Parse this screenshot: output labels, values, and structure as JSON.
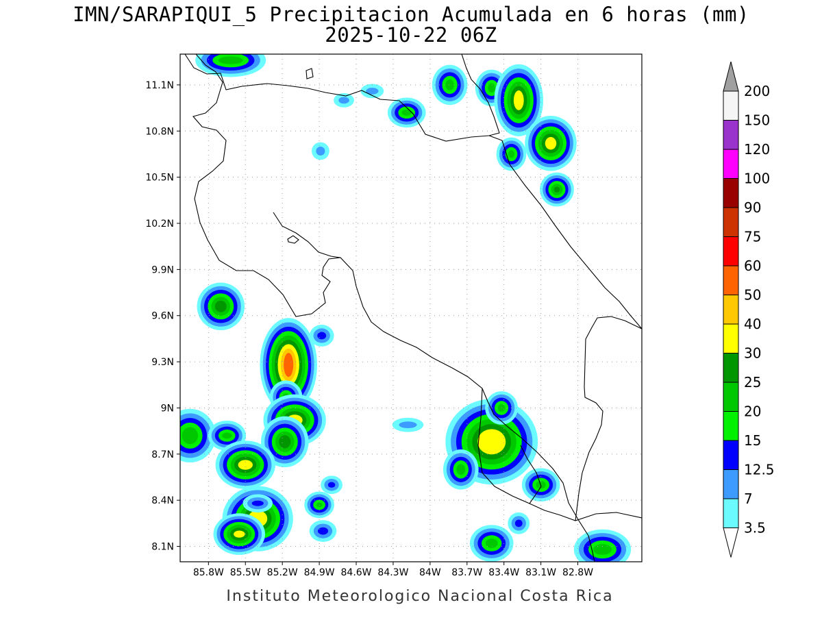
{
  "title": {
    "line1": "IMN/SARAPIQUI_5 Precipitacion Acumulada en 6 horas (mm)",
    "line2": "2025-10-22 06Z"
  },
  "footer": "Instituto Meteorologico Nacional Costa Rica",
  "map": {
    "lon_range": [
      -86.03,
      -82.28
    ],
    "lat_range": [
      8.0,
      11.3
    ],
    "lon_ticks": [
      {
        "value": -85.8,
        "label": "85.8W"
      },
      {
        "value": -85.5,
        "label": "85.5W"
      },
      {
        "value": -85.2,
        "label": "85.2W"
      },
      {
        "value": -84.9,
        "label": "84.9W"
      },
      {
        "value": -84.6,
        "label": "84.6W"
      },
      {
        "value": -84.3,
        "label": "84.3W"
      },
      {
        "value": -84.0,
        "label": "84W"
      },
      {
        "value": -83.7,
        "label": "83.7W"
      },
      {
        "value": -83.4,
        "label": "83.4W"
      },
      {
        "value": -83.1,
        "label": "83.1W"
      },
      {
        "value": -82.8,
        "label": "82.8W"
      }
    ],
    "lat_ticks": [
      {
        "value": 11.1,
        "label": "11.1N"
      },
      {
        "value": 10.8,
        "label": "10.8N"
      },
      {
        "value": 10.5,
        "label": "10.5N"
      },
      {
        "value": 10.2,
        "label": "10.2N"
      },
      {
        "value": 9.9,
        "label": "9.9N"
      },
      {
        "value": 9.6,
        "label": "9.6N"
      },
      {
        "value": 9.3,
        "label": "9.3N"
      },
      {
        "value": 9.0,
        "label": "9N"
      },
      {
        "value": 8.7,
        "label": "8.7N"
      },
      {
        "value": 8.4,
        "label": "8.4N"
      },
      {
        "value": 8.1,
        "label": "8.1N"
      }
    ],
    "gridlines": true,
    "coastline_color": "#000000"
  },
  "colorbar": {
    "top_arrow_color": "#a0a0a0",
    "bottom_arrow_color": "#ffffff",
    "levels": [
      {
        "label": "3.5",
        "color": "#6bfbff"
      },
      {
        "label": "7",
        "color": "#3d9bff"
      },
      {
        "label": "12.5",
        "color": "#0000ff"
      },
      {
        "label": "15",
        "color": "#00f000"
      },
      {
        "label": "20",
        "color": "#00c800"
      },
      {
        "label": "25",
        "color": "#009600"
      },
      {
        "label": "30",
        "color": "#ffff00"
      },
      {
        "label": "40",
        "color": "#ffc800"
      },
      {
        "label": "50",
        "color": "#ff6400"
      },
      {
        "label": "60",
        "color": "#ff0000"
      },
      {
        "label": "75",
        "color": "#cc3300"
      },
      {
        "label": "90",
        "color": "#990000"
      },
      {
        "label": "100",
        "color": "#ff00ff"
      },
      {
        "label": "120",
        "color": "#9933cc"
      },
      {
        "label": "150",
        "color": "#f5f5f5"
      },
      {
        "label": "200",
        "color": ""
      }
    ]
  },
  "precip_cells": [
    {
      "lon": -85.62,
      "lat": 11.26,
      "rx": 0.2,
      "ry": 0.05,
      "level": 4
    },
    {
      "lon": -84.7,
      "lat": 11.0,
      "rx": 0.06,
      "ry": 0.03,
      "level": 1
    },
    {
      "lon": -84.47,
      "lat": 11.06,
      "rx": 0.07,
      "ry": 0.03,
      "level": 1
    },
    {
      "lon": -84.19,
      "lat": 10.92,
      "rx": 0.08,
      "ry": 0.04,
      "level": 4
    },
    {
      "lon": -83.84,
      "lat": 11.1,
      "rx": 0.07,
      "ry": 0.07,
      "level": 4
    },
    {
      "lon": -83.5,
      "lat": 11.08,
      "rx": 0.06,
      "ry": 0.06,
      "level": 4
    },
    {
      "lon": -83.28,
      "lat": 11.0,
      "rx": 0.09,
      "ry": 0.14,
      "level": 6
    },
    {
      "lon": -83.02,
      "lat": 10.72,
      "rx": 0.1,
      "ry": 0.09,
      "level": 6
    },
    {
      "lon": -83.34,
      "lat": 10.65,
      "rx": 0.05,
      "ry": 0.05,
      "level": 4
    },
    {
      "lon": -82.97,
      "lat": 10.42,
      "rx": 0.05,
      "ry": 0.04,
      "level": 5
    },
    {
      "lon": -84.89,
      "lat": 10.67,
      "rx": 0.05,
      "ry": 0.04,
      "level": 1
    },
    {
      "lon": -85.7,
      "lat": 9.66,
      "rx": 0.1,
      "ry": 0.08,
      "level": 5
    },
    {
      "lon": -85.15,
      "lat": 9.28,
      "rx": 0.09,
      "ry": 0.18,
      "level": 8
    },
    {
      "lon": -85.17,
      "lat": 9.07,
      "rx": 0.06,
      "ry": 0.05,
      "level": 4
    },
    {
      "lon": -85.1,
      "lat": 8.92,
      "rx": 0.14,
      "ry": 0.08,
      "level": 6
    },
    {
      "lon": -85.18,
      "lat": 8.78,
      "rx": 0.1,
      "ry": 0.09,
      "level": 5
    },
    {
      "lon": -85.95,
      "lat": 8.82,
      "rx": 0.13,
      "ry": 0.11,
      "level": 4
    },
    {
      "lon": -85.65,
      "lat": 8.82,
      "rx": 0.08,
      "ry": 0.04,
      "level": 4
    },
    {
      "lon": -85.5,
      "lat": 8.63,
      "rx": 0.13,
      "ry": 0.07,
      "level": 6
    },
    {
      "lon": -85.4,
      "lat": 8.28,
      "rx": 0.17,
      "ry": 0.12,
      "level": 6
    },
    {
      "lon": -85.55,
      "lat": 8.18,
      "rx": 0.1,
      "ry": 0.05,
      "level": 6
    },
    {
      "lon": -84.88,
      "lat": 9.47,
      "rx": 0.06,
      "ry": 0.04,
      "level": 2
    },
    {
      "lon": -83.5,
      "lat": 8.78,
      "rx": 0.25,
      "ry": 0.18,
      "level": 6
    },
    {
      "lon": -83.42,
      "lat": 9.0,
      "rx": 0.06,
      "ry": 0.05,
      "level": 4
    },
    {
      "lon": -83.75,
      "lat": 8.6,
      "rx": 0.07,
      "ry": 0.07,
      "level": 4
    },
    {
      "lon": -83.1,
      "lat": 8.5,
      "rx": 0.08,
      "ry": 0.05,
      "level": 4
    },
    {
      "lon": -83.5,
      "lat": 8.12,
      "rx": 0.1,
      "ry": 0.06,
      "level": 4
    },
    {
      "lon": -83.28,
      "lat": 8.25,
      "rx": 0.05,
      "ry": 0.04,
      "level": 2
    },
    {
      "lon": -82.6,
      "lat": 8.08,
      "rx": 0.15,
      "ry": 0.07,
      "level": 4
    },
    {
      "lon": -84.8,
      "lat": 8.5,
      "rx": 0.05,
      "ry": 0.03,
      "level": 2
    },
    {
      "lon": -84.87,
      "lat": 8.2,
      "rx": 0.07,
      "ry": 0.04,
      "level": 2
    },
    {
      "lon": -84.9,
      "lat": 8.37,
      "rx": 0.05,
      "ry": 0.03,
      "level": 4
    },
    {
      "lon": -85.4,
      "lat": 8.38,
      "rx": 0.08,
      "ry": 0.03,
      "level": 2
    },
    {
      "lon": -84.18,
      "lat": 8.89,
      "rx": 0.1,
      "ry": 0.03,
      "level": 1
    }
  ]
}
